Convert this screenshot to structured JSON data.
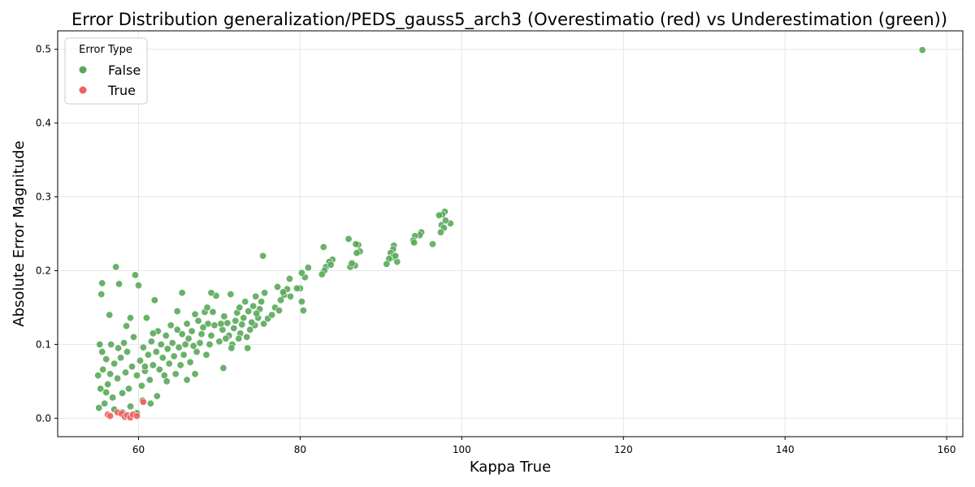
{
  "chart_data": {
    "type": "scatter",
    "title": "Error Distribution generalization/PEDS_gauss5_arch3 (Overestimatio (red) vs Underestimation (green))",
    "xlabel": "Kappa True",
    "ylabel": "Absolute Error Magnitude",
    "xlim": [
      50,
      162
    ],
    "ylim": [
      -0.025,
      0.525
    ],
    "xticks": [
      60,
      80,
      100,
      120,
      140,
      160
    ],
    "xtick_labels": [
      "60",
      "80",
      "100",
      "120",
      "140",
      "160"
    ],
    "yticks": [
      0.0,
      0.1,
      0.2,
      0.3,
      0.4,
      0.5
    ],
    "ytick_labels": [
      "0.0",
      "0.1",
      "0.2",
      "0.3",
      "0.4",
      "0.5"
    ],
    "grid": true,
    "legend": {
      "title": "Error Type",
      "placement": "top-left",
      "entries": [
        {
          "label": "False",
          "color": "#5aa85a"
        },
        {
          "label": "True",
          "color": "#ef6060"
        }
      ]
    },
    "series": [
      {
        "name": "False",
        "color": "#5aa85a",
        "points": [
          [
            157.0,
            0.499
          ],
          [
            97.9,
            0.28
          ],
          [
            97.6,
            0.276
          ],
          [
            97.2,
            0.275
          ],
          [
            98.6,
            0.264
          ],
          [
            97.5,
            0.262
          ],
          [
            97.8,
            0.258
          ],
          [
            97.4,
            0.252
          ],
          [
            98.0,
            0.268
          ],
          [
            96.4,
            0.236
          ],
          [
            95.0,
            0.252
          ],
          [
            94.8,
            0.248
          ],
          [
            94.2,
            0.247
          ],
          [
            94.0,
            0.241
          ],
          [
            94.1,
            0.238
          ],
          [
            91.6,
            0.234
          ],
          [
            91.5,
            0.229
          ],
          [
            91.2,
            0.224
          ],
          [
            91.4,
            0.218
          ],
          [
            92.0,
            0.212
          ],
          [
            91.8,
            0.22
          ],
          [
            91.0,
            0.216
          ],
          [
            90.7,
            0.209
          ],
          [
            87.2,
            0.235
          ],
          [
            86.9,
            0.236
          ],
          [
            87.4,
            0.226
          ],
          [
            87.0,
            0.224
          ],
          [
            86.8,
            0.207
          ],
          [
            86.0,
            0.243
          ],
          [
            86.2,
            0.205
          ],
          [
            86.4,
            0.21
          ],
          [
            84.0,
            0.215
          ],
          [
            83.6,
            0.212
          ],
          [
            83.2,
            0.205
          ],
          [
            83.0,
            0.2
          ],
          [
            82.7,
            0.195
          ],
          [
            82.9,
            0.232
          ],
          [
            83.8,
            0.208
          ],
          [
            81.0,
            0.204
          ],
          [
            80.6,
            0.191
          ],
          [
            80.2,
            0.197
          ],
          [
            80.0,
            0.176
          ],
          [
            79.6,
            0.176
          ],
          [
            80.4,
            0.146
          ],
          [
            80.2,
            0.158
          ],
          [
            78.7,
            0.189
          ],
          [
            78.4,
            0.175
          ],
          [
            78.0,
            0.167
          ],
          [
            77.6,
            0.16
          ],
          [
            77.9,
            0.171
          ],
          [
            77.2,
            0.178
          ],
          [
            76.9,
            0.15
          ],
          [
            77.4,
            0.146
          ],
          [
            75.4,
            0.22
          ],
          [
            75.6,
            0.17
          ],
          [
            75.2,
            0.158
          ],
          [
            75.0,
            0.148
          ],
          [
            75.5,
            0.128
          ],
          [
            74.8,
            0.136
          ],
          [
            74.6,
            0.142
          ],
          [
            74.4,
            0.126
          ],
          [
            74.2,
            0.152
          ],
          [
            74.0,
            0.13
          ],
          [
            73.8,
            0.12
          ],
          [
            73.6,
            0.145
          ],
          [
            73.4,
            0.11
          ],
          [
            73.2,
            0.158
          ],
          [
            73.0,
            0.136
          ],
          [
            72.8,
            0.127
          ],
          [
            72.6,
            0.115
          ],
          [
            72.4,
            0.108
          ],
          [
            72.2,
            0.143
          ],
          [
            72.0,
            0.132
          ],
          [
            71.8,
            0.122
          ],
          [
            71.6,
            0.1
          ],
          [
            71.4,
            0.168
          ],
          [
            71.2,
            0.112
          ],
          [
            71.0,
            0.129
          ],
          [
            70.8,
            0.108
          ],
          [
            70.6,
            0.138
          ],
          [
            70.4,
            0.12
          ],
          [
            70.2,
            0.128
          ],
          [
            70.0,
            0.104
          ],
          [
            69.6,
            0.166
          ],
          [
            69.4,
            0.126
          ],
          [
            69.2,
            0.144
          ],
          [
            69.0,
            0.112
          ],
          [
            68.8,
            0.1
          ],
          [
            68.6,
            0.128
          ],
          [
            68.4,
            0.086
          ],
          [
            68.2,
            0.144
          ],
          [
            68.0,
            0.123
          ],
          [
            67.8,
            0.114
          ],
          [
            67.6,
            0.102
          ],
          [
            67.4,
            0.132
          ],
          [
            67.2,
            0.09
          ],
          [
            67.0,
            0.141
          ],
          [
            66.8,
            0.098
          ],
          [
            66.6,
            0.118
          ],
          [
            66.4,
            0.076
          ],
          [
            66.2,
            0.108
          ],
          [
            66.0,
            0.128
          ],
          [
            65.8,
            0.1
          ],
          [
            65.6,
            0.086
          ],
          [
            65.4,
            0.114
          ],
          [
            65.2,
            0.072
          ],
          [
            65.0,
            0.096
          ],
          [
            64.8,
            0.12
          ],
          [
            64.6,
            0.06
          ],
          [
            64.4,
            0.084
          ],
          [
            64.2,
            0.102
          ],
          [
            64.0,
            0.126
          ],
          [
            63.8,
            0.074
          ],
          [
            63.6,
            0.094
          ],
          [
            63.4,
            0.112
          ],
          [
            63.2,
            0.058
          ],
          [
            63.0,
            0.082
          ],
          [
            62.8,
            0.1
          ],
          [
            62.6,
            0.066
          ],
          [
            62.4,
            0.118
          ],
          [
            62.2,
            0.09
          ],
          [
            62.0,
            0.16
          ],
          [
            61.8,
            0.072
          ],
          [
            61.6,
            0.104
          ],
          [
            61.4,
            0.052
          ],
          [
            61.2,
            0.086
          ],
          [
            61.0,
            0.136
          ],
          [
            60.8,
            0.064
          ],
          [
            60.6,
            0.096
          ],
          [
            60.4,
            0.044
          ],
          [
            60.2,
            0.078
          ],
          [
            60.0,
            0.18
          ],
          [
            59.8,
            0.058
          ],
          [
            59.6,
            0.194
          ],
          [
            59.4,
            0.11
          ],
          [
            59.2,
            0.07
          ],
          [
            59.0,
            0.136
          ],
          [
            58.8,
            0.04
          ],
          [
            58.6,
            0.09
          ],
          [
            58.4,
            0.062
          ],
          [
            58.2,
            0.102
          ],
          [
            58.0,
            0.034
          ],
          [
            57.8,
            0.082
          ],
          [
            57.6,
            0.182
          ],
          [
            57.4,
            0.054
          ],
          [
            57.2,
            0.205
          ],
          [
            57.0,
            0.074
          ],
          [
            56.8,
            0.028
          ],
          [
            56.6,
            0.1
          ],
          [
            56.4,
            0.14
          ],
          [
            56.2,
            0.046
          ],
          [
            56.0,
            0.08
          ],
          [
            55.8,
            0.02
          ],
          [
            55.6,
            0.066
          ],
          [
            55.5,
            0.183
          ],
          [
            55.4,
            0.168
          ],
          [
            55.3,
            0.04
          ],
          [
            55.2,
            0.1
          ],
          [
            55.1,
            0.014
          ],
          [
            55.0,
            0.058
          ],
          [
            55.5,
            0.09
          ],
          [
            56.0,
            0.035
          ],
          [
            57.0,
            0.012
          ],
          [
            58.0,
            0.008
          ],
          [
            59.0,
            0.016
          ],
          [
            59.8,
            0.007
          ],
          [
            60.5,
            0.024
          ],
          [
            61.5,
            0.02
          ],
          [
            62.3,
            0.03
          ],
          [
            56.5,
            0.06
          ],
          [
            57.5,
            0.095
          ],
          [
            58.5,
            0.125
          ],
          [
            60.8,
            0.07
          ],
          [
            61.8,
            0.115
          ],
          [
            63.5,
            0.05
          ],
          [
            64.8,
            0.145
          ],
          [
            65.4,
            0.17
          ],
          [
            66.0,
            0.052
          ],
          [
            67.0,
            0.06
          ],
          [
            68.5,
            0.15
          ],
          [
            69.0,
            0.17
          ],
          [
            70.5,
            0.068
          ],
          [
            71.5,
            0.095
          ],
          [
            72.5,
            0.15
          ],
          [
            73.5,
            0.095
          ],
          [
            74.5,
            0.165
          ],
          [
            76.0,
            0.135
          ],
          [
            76.5,
            0.14
          ],
          [
            78.8,
            0.165
          ]
        ]
      },
      {
        "name": "True",
        "color": "#ef6060",
        "points": [
          [
            56.2,
            0.005
          ],
          [
            56.5,
            0.003
          ],
          [
            57.4,
            0.008
          ],
          [
            57.9,
            0.006
          ],
          [
            58.3,
            0.002
          ],
          [
            58.6,
            0.004
          ],
          [
            59.0,
            0.001
          ],
          [
            59.3,
            0.005
          ],
          [
            59.8,
            0.003
          ],
          [
            60.6,
            0.022
          ]
        ]
      }
    ]
  }
}
